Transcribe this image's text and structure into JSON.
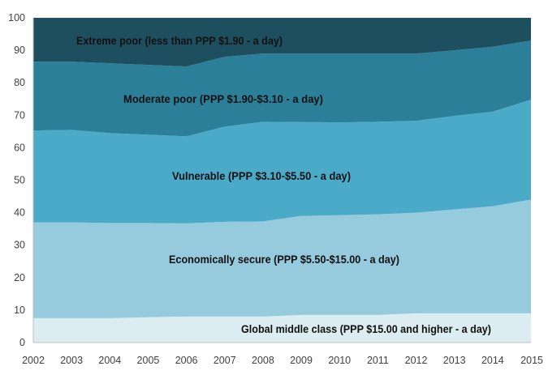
{
  "chart_data": {
    "type": "area",
    "stacked": true,
    "x": [
      2002,
      2003,
      2004,
      2005,
      2006,
      2007,
      2008,
      2009,
      2010,
      2011,
      2012,
      2013,
      2014,
      2015
    ],
    "ylim": [
      0,
      100
    ],
    "yticks": [
      0,
      10,
      20,
      30,
      40,
      50,
      60,
      70,
      80,
      90,
      100
    ],
    "xticks": [
      "2002",
      "2003",
      "2004",
      "2005",
      "2006",
      "2007",
      "2008",
      "2009",
      "2010",
      "2011",
      "2012",
      "2013",
      "2014",
      "2015"
    ],
    "grid": false,
    "series": [
      {
        "name": "Global middle class (PPP $15.00 and higher - a day)",
        "color": "#dcedf2",
        "values": [
          7.5,
          7.5,
          7.5,
          7.8,
          8.0,
          8.0,
          8.0,
          8.5,
          8.5,
          8.5,
          9.0,
          9.0,
          9.0,
          9.0
        ]
      },
      {
        "name": "Economically secure (PPP $5.50-$15.00 - a day)",
        "color": "#96cbdd",
        "values": [
          29.5,
          29.5,
          29.3,
          29.0,
          28.7,
          29.2,
          29.3,
          30.5,
          30.7,
          31.0,
          31.0,
          32.0,
          33.0,
          35.0
        ]
      },
      {
        "name": "Vulnerable (PPP $3.10-$5.50 - a day)",
        "color": "#4aaac8",
        "values": [
          28.3,
          28.5,
          27.7,
          27.2,
          26.8,
          29.3,
          30.7,
          28.9,
          28.6,
          28.5,
          28.3,
          28.8,
          29.1,
          30.8
        ]
      },
      {
        "name": "Moderate poor (PPP $1.90-$3.10 - a day)",
        "color": "#2c7f98",
        "values": [
          21.2,
          21.0,
          21.5,
          21.5,
          21.5,
          21.5,
          21.0,
          21.1,
          21.2,
          21.0,
          20.7,
          20.2,
          20.0,
          18.2
        ]
      },
      {
        "name": "Extreme poor (less than PPP $1.90 - a day)",
        "color": "#1d4f5f",
        "values": [
          13.5,
          13.5,
          14.0,
          14.5,
          15.0,
          12.0,
          11.0,
          11.0,
          11.0,
          11.0,
          11.0,
          10.0,
          8.9,
          7.0
        ]
      }
    ]
  }
}
